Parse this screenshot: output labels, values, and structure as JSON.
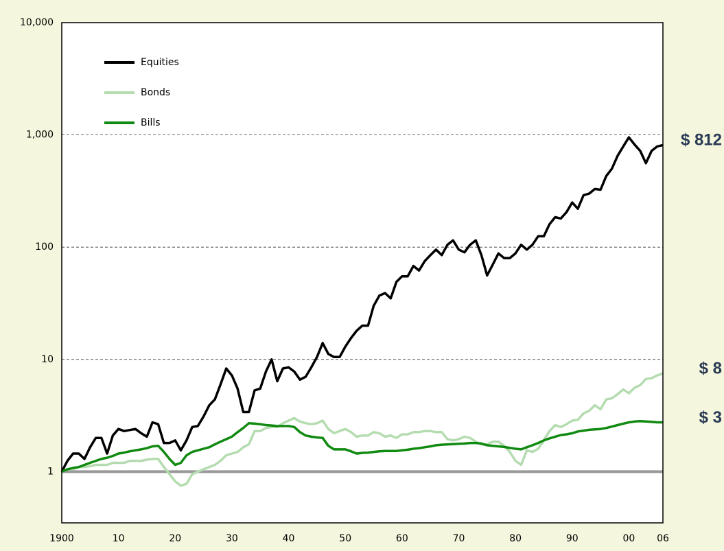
{
  "chart_data": {
    "type": "line",
    "log_y": true,
    "grid": true,
    "grid_style": "dashed",
    "baseline": 1,
    "legend": "upper left",
    "xlim": [
      1900,
      2006
    ],
    "ylim": [
      0.35,
      10000
    ],
    "xticks": [
      {
        "value": 1900,
        "label": "1900"
      },
      {
        "value": 1910,
        "label": "10"
      },
      {
        "value": 1920,
        "label": "20"
      },
      {
        "value": 1930,
        "label": "30"
      },
      {
        "value": 1940,
        "label": "40"
      },
      {
        "value": 1950,
        "label": "50"
      },
      {
        "value": 1960,
        "label": "60"
      },
      {
        "value": 1970,
        "label": "70"
      },
      {
        "value": 1980,
        "label": "80"
      },
      {
        "value": 1990,
        "label": "90"
      },
      {
        "value": 2000,
        "label": "00"
      },
      {
        "value": 2006,
        "label": "06"
      }
    ],
    "yticks": [
      1,
      10,
      100,
      {
        "value": 1000,
        "label": "1,000"
      },
      {
        "value": 10000,
        "label": "10,000"
      }
    ],
    "x": [
      1900,
      1901,
      1902,
      1903,
      1904,
      1905,
      1906,
      1907,
      1908,
      1909,
      1910,
      1911,
      1912,
      1913,
      1914,
      1915,
      1916,
      1917,
      1918,
      1919,
      1920,
      1921,
      1922,
      1923,
      1924,
      1925,
      1926,
      1927,
      1928,
      1929,
      1930,
      1931,
      1932,
      1933,
      1934,
      1935,
      1936,
      1937,
      1938,
      1939,
      1940,
      1941,
      1942,
      1943,
      1944,
      1945,
      1946,
      1947,
      1948,
      1949,
      1950,
      1951,
      1952,
      1953,
      1954,
      1955,
      1956,
      1957,
      1958,
      1959,
      1960,
      1961,
      1962,
      1963,
      1964,
      1965,
      1966,
      1967,
      1968,
      1969,
      1970,
      1971,
      1972,
      1973,
      1974,
      1975,
      1976,
      1977,
      1978,
      1979,
      1980,
      1981,
      1982,
      1983,
      1984,
      1985,
      1986,
      1987,
      1988,
      1989,
      1990,
      1991,
      1992,
      1993,
      1994,
      1995,
      1996,
      1997,
      1998,
      1999,
      2000,
      2001,
      2002,
      2003,
      2004,
      2005,
      2006
    ],
    "series": [
      {
        "name": "Equities",
        "color": "#000000",
        "values": [
          1.0,
          1.25,
          1.45,
          1.45,
          1.3,
          1.65,
          2.0,
          2.0,
          1.45,
          2.1,
          2.4,
          2.3,
          2.35,
          2.4,
          2.2,
          2.05,
          2.75,
          2.65,
          1.8,
          1.8,
          1.9,
          1.55,
          1.9,
          2.5,
          2.55,
          3.1,
          3.9,
          4.4,
          6.0,
          8.3,
          7.2,
          5.5,
          3.4,
          3.4,
          5.3,
          5.5,
          7.8,
          10.0,
          6.4,
          8.3,
          8.5,
          7.8,
          6.6,
          7.0,
          8.5,
          10.5,
          14,
          11.2,
          10.5,
          10.5,
          13,
          15.5,
          18,
          20,
          20,
          30,
          37,
          39,
          35,
          49,
          55,
          55,
          68,
          62,
          75,
          85,
          95,
          85,
          105,
          115,
          95,
          90,
          105,
          115,
          85,
          56,
          70,
          88,
          80,
          80,
          88,
          105,
          95,
          105,
          125,
          125,
          160,
          185,
          180,
          205,
          250,
          220,
          290,
          300,
          330,
          325,
          430,
          500,
          650,
          790,
          950,
          820,
          720,
          560,
          720,
          790,
          812
        ]
      },
      {
        "name": "Bonds",
        "color": "#b5dcb0",
        "values": [
          1.0,
          1.05,
          1.05,
          1.1,
          1.1,
          1.12,
          1.15,
          1.15,
          1.15,
          1.2,
          1.2,
          1.2,
          1.25,
          1.25,
          1.25,
          1.28,
          1.3,
          1.3,
          1.1,
          0.95,
          0.82,
          0.75,
          0.78,
          0.95,
          1.0,
          1.05,
          1.1,
          1.15,
          1.25,
          1.4,
          1.45,
          1.5,
          1.65,
          1.75,
          2.3,
          2.3,
          2.45,
          2.5,
          2.5,
          2.7,
          2.85,
          3.0,
          2.8,
          2.7,
          2.65,
          2.7,
          2.85,
          2.4,
          2.2,
          2.3,
          2.4,
          2.25,
          2.05,
          2.1,
          2.1,
          2.25,
          2.2,
          2.05,
          2.1,
          2.0,
          2.15,
          2.15,
          2.25,
          2.25,
          2.3,
          2.3,
          2.25,
          2.25,
          1.95,
          1.9,
          1.95,
          2.05,
          2.0,
          1.85,
          1.75,
          1.75,
          1.85,
          1.85,
          1.7,
          1.5,
          1.25,
          1.15,
          1.55,
          1.5,
          1.6,
          1.9,
          2.3,
          2.6,
          2.5,
          2.65,
          2.85,
          2.9,
          3.3,
          3.5,
          3.9,
          3.6,
          4.4,
          4.5,
          4.9,
          5.4,
          5.0,
          5.6,
          5.9,
          6.7,
          6.8,
          7.2,
          7.5
        ]
      },
      {
        "name": "Bills",
        "color": "#118a11",
        "values": [
          1.0,
          1.05,
          1.08,
          1.1,
          1.15,
          1.2,
          1.25,
          1.3,
          1.33,
          1.38,
          1.45,
          1.48,
          1.52,
          1.55,
          1.58,
          1.62,
          1.68,
          1.7,
          1.5,
          1.3,
          1.15,
          1.2,
          1.4,
          1.5,
          1.55,
          1.6,
          1.65,
          1.75,
          1.85,
          1.95,
          2.05,
          2.25,
          2.45,
          2.7,
          2.68,
          2.65,
          2.6,
          2.58,
          2.55,
          2.55,
          2.55,
          2.5,
          2.25,
          2.1,
          2.05,
          2.02,
          2.0,
          1.7,
          1.58,
          1.58,
          1.58,
          1.52,
          1.45,
          1.47,
          1.48,
          1.5,
          1.52,
          1.53,
          1.53,
          1.53,
          1.55,
          1.57,
          1.6,
          1.62,
          1.65,
          1.68,
          1.72,
          1.74,
          1.75,
          1.76,
          1.77,
          1.78,
          1.8,
          1.8,
          1.78,
          1.72,
          1.7,
          1.68,
          1.66,
          1.63,
          1.6,
          1.58,
          1.65,
          1.72,
          1.8,
          1.9,
          1.98,
          2.05,
          2.12,
          2.15,
          2.2,
          2.28,
          2.32,
          2.36,
          2.38,
          2.4,
          2.45,
          2.52,
          2.6,
          2.68,
          2.75,
          2.8,
          2.82,
          2.8,
          2.78,
          2.75,
          2.75
        ]
      }
    ],
    "annotations": [
      {
        "text": "$ 812",
        "series": 0
      },
      {
        "text": "$ 8",
        "series": 1
      },
      {
        "text": "$ 3",
        "series": 2
      }
    ]
  }
}
